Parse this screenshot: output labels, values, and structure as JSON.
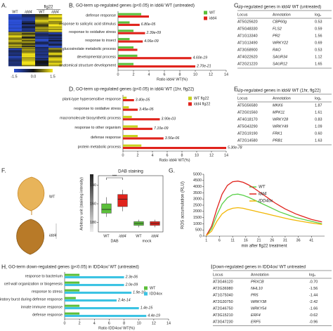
{
  "panel_labels": [
    "A.",
    "B.",
    "C.",
    "D.",
    "E.",
    "F.",
    "G.",
    "H.",
    "I."
  ],
  "heatmap": {
    "column_labels": [
      "WT",
      "idd4",
      "WT",
      "idd4"
    ],
    "group_label": "flg22",
    "colorbar_ticks": [
      -1.5,
      {
        "value": 0,
        "label": "0.0"
      },
      1.5
    ]
  },
  "chart_data": [
    {
      "type": "hbar",
      "title": "GO-term up-regulated genes (p<0.05) in idd4/ WT (untreated)",
      "xlabel": "Ratio idd4/ WT(%)",
      "categories": [
        "defense response",
        "response to salicylic acid stimulus",
        "response to oxidative stress",
        "response to insect",
        "glucosinolate metabolic process",
        "developmental process",
        "anatomical structure development"
      ],
      "series": [
        {
          "name": "WT",
          "color": "#5bbf3a",
          "values": [
            3,
            1.5,
            2,
            1.5,
            2,
            2.5,
            2
          ]
        },
        {
          "name": "idd4",
          "color": "#e0231c",
          "values": [
            4,
            2.8,
            3.5,
            3.2,
            2.5,
            9.5,
            10
          ]
        }
      ],
      "annotations": [
        null,
        "6.80e-05",
        "2.39e-09",
        "4.06e-09",
        null,
        "4.60e-19",
        "2.70e-21"
      ],
      "xlim": [
        0,
        14
      ],
      "xticks": [
        0,
        2,
        4,
        6,
        8,
        10,
        12,
        14
      ]
    },
    {
      "type": "hbar",
      "title": "GO-term up-regulated genes (p<0.05) in idd4/ WT (1hr, flg22)",
      "xlabel": "Ratio idd4/ WT(%)",
      "categories": [
        "plant-type hypersensitive response",
        "response to oxidative stress",
        "macromolecule biosynthetic process",
        "response to other organism",
        "defense response",
        "protein metabolic process"
      ],
      "series": [
        {
          "name": "WT flg22",
          "color": "#c8d21e",
          "values": [
            0.5,
            0.8,
            1.2,
            2,
            2,
            2.5
          ]
        },
        {
          "name": "idd4 flg22",
          "color": "#e0231c",
          "values": [
            1.5,
            2,
            5,
            4,
            5.5,
            14
          ]
        }
      ],
      "annotations": [
        "3.40e-05",
        "3.45e-05",
        "3.90e-03",
        "7.10e-09",
        "3.56e-06",
        "5.30e-78"
      ],
      "xlim": [
        0,
        14
      ],
      "xticks": [
        0,
        2,
        4,
        6,
        8,
        10,
        12,
        14
      ]
    },
    {
      "type": "box",
      "title": "DAB staining",
      "ylabel": "Arbitrary unit (staining intensity)",
      "categories": [
        "WT",
        "idd4",
        "WT",
        "idd4"
      ],
      "groups": [
        "DAB",
        "mock"
      ],
      "image_labels": [
        "WT",
        "idd4"
      ],
      "annotation": "***",
      "boxes": [
        {
          "color": "#5bbf3a",
          "low": 153,
          "q1": 160,
          "median": 166,
          "q3": 170,
          "high": 174
        },
        {
          "color": "#e0231c",
          "low": 145,
          "q1": 150,
          "median": 155,
          "q3": 163,
          "high": 168
        },
        {
          "color": "#5bbf3a",
          "low": 177,
          "q1": 179,
          "median": 181,
          "q3": 183,
          "high": 185
        },
        {
          "color": "#e0231c",
          "low": 177,
          "q1": 179,
          "median": 181,
          "q3": 183,
          "high": 185
        }
      ],
      "ylim": [
        190,
        130
      ],
      "yticks": [
        140,
        160,
        180
      ]
    },
    {
      "type": "line",
      "ylabel": "ROS accumulation (RLU)",
      "xlabel": "min after flg22 treatment",
      "x": [
        1,
        3,
        5,
        7,
        9,
        11,
        13,
        15,
        17,
        19,
        21,
        23,
        25,
        27,
        29,
        31,
        33,
        35,
        37,
        39,
        41,
        43,
        45
      ],
      "series": [
        {
          "name": "WT",
          "color": "#5bd04a",
          "values": [
            50,
            600,
            1700,
            2600,
            3100,
            3350,
            3400,
            3300,
            3150,
            2950,
            2750,
            2550,
            2350,
            2150,
            1950,
            1800,
            1650,
            1500,
            1400,
            1300,
            1200,
            1100,
            1000
          ]
        },
        {
          "name": "idd4",
          "color": "#e0231c",
          "values": [
            50,
            800,
            2200,
            3400,
            4100,
            4400,
            4450,
            4350,
            4150,
            3900,
            3600,
            3300,
            3000,
            2700,
            2450,
            2200,
            2000,
            1800,
            1650,
            1500,
            1350,
            1250,
            1150
          ]
        },
        {
          "name": "IDD4ox",
          "color": "#f2b705",
          "values": [
            50,
            400,
            1200,
            1800,
            2100,
            2250,
            2300,
            2250,
            2150,
            2050,
            1950,
            1850,
            1750,
            1650,
            1550,
            1450,
            1350,
            1280,
            1200,
            1130,
            1060,
            1000,
            950
          ]
        }
      ],
      "xlim": [
        0,
        46
      ],
      "ylim": [
        0,
        5000
      ],
      "xticks": [
        1,
        6,
        11,
        16,
        21,
        26,
        31,
        36,
        41
      ],
      "yticks": [
        0,
        500,
        1000,
        1500,
        2000,
        2500,
        3000,
        3500,
        4000,
        4500,
        5000
      ]
    },
    {
      "type": "hbar",
      "title": "GO-term down-regulated genes (p<0.05) in IDD4ox/ WT (untreated)",
      "xlabel": "Ratio IDD4ox/ WT(%)",
      "categories": [
        "response to bacterium",
        "cell wall organization or biogenesis",
        "response to stress",
        "respiratory burst during defense response",
        "innate immune response",
        "defense response"
      ],
      "series": [
        {
          "name": "WT",
          "color": "#5bbf3a",
          "values": [
            2,
            2,
            2,
            1.5,
            2,
            2
          ]
        },
        {
          "name": "IDD4ox",
          "color": "#3cc3e3",
          "values": [
            8,
            8,
            9,
            7,
            10,
            11
          ]
        }
      ],
      "annotations": [
        "2.3e-06",
        "2.0e-09",
        "1.9e-10",
        "2.4e-14",
        "1.4e-15",
        "4.4e-19"
      ],
      "xlim": [
        0,
        14
      ],
      "xticks": [
        0,
        2,
        4,
        6,
        8,
        10,
        12,
        14
      ]
    }
  ],
  "tables": [
    {
      "title": "Up-regulated genes in idd4/ WT (untreated)",
      "columns": [
        "Locus",
        "Annotation",
        "log₂"
      ],
      "rows": [
        [
          "AT5G25620",
          "CBP60g",
          "0.53"
        ],
        [
          "AT5G48330",
          "FLS2",
          "0.59"
        ],
        [
          "AT1G13340",
          "PR2",
          "1.56"
        ],
        [
          "AT1G13490",
          "WRKY22",
          "0.69"
        ],
        [
          "AT3G58900",
          "RAO",
          "0.53"
        ],
        [
          "AT4G22620",
          "SAUR34",
          "1.12"
        ],
        [
          "AT2G21220",
          "SAUR12",
          "1.65"
        ]
      ]
    },
    {
      "title": "Up-regulated genes in idd4/ WT (1hr, flg22)",
      "columns": [
        "Locus",
        "Annotation",
        "log₂"
      ],
      "rows": [
        [
          "AT5G56580",
          "MKK6",
          "1.87"
        ],
        [
          "AT2G01560",
          "MPK11",
          "1.61"
        ],
        [
          "AT4G18170",
          "WRKY28",
          "0.83"
        ],
        [
          "AT5G43290",
          "WRKY49",
          "1.09"
        ],
        [
          "AT2G19190",
          "FRK1",
          "0.60"
        ],
        [
          "AT2G14580",
          "PRB1",
          "1.63"
        ]
      ]
    },
    {
      "title": "Down-regulated genes in IDD4ox/ WT untreated",
      "columns": [
        "Locus",
        "Annotation",
        "log₂"
      ],
      "rows": [
        [
          "AT3G46120",
          "PRXCB",
          "-0.70"
        ],
        [
          "AT2G36980",
          "NHL10",
          "-1.56"
        ],
        [
          "AT1G75040",
          "PR5",
          "-1.44"
        ],
        [
          "AT2G30750",
          "WRKY38",
          "-2.42"
        ],
        [
          "AT2G46750",
          "WRKY54",
          "-1.66"
        ],
        [
          "AT3G15210",
          "ERF4",
          "-0.62"
        ],
        [
          "AT3G47230",
          "ERF5",
          "-0.96"
        ]
      ]
    }
  ]
}
